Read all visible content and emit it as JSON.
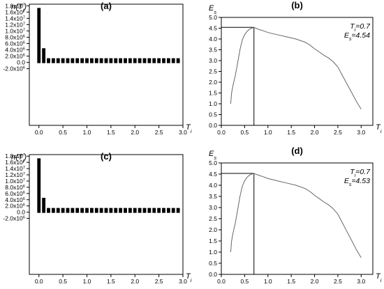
{
  "chart_data": [
    {
      "panel": "(a)",
      "type": "bar",
      "ylabel_main": "n(T",
      "ylabel_sub": "i",
      "ylabel_close": ")",
      "xlabel_main": "T",
      "xlabel_sub": "i",
      "xlim": [
        -0.2,
        3.0
      ],
      "ylim": [
        -20000000,
        18500000
      ],
      "x_ticks": [
        "0.0",
        "0.5",
        "1.0",
        "1.5",
        "2.0",
        "2.5",
        "3.0"
      ],
      "x_tick_values": [
        0.0,
        0.5,
        1.0,
        1.5,
        2.0,
        2.5,
        3.0
      ],
      "y_tick_values": [
        -2000000,
        0,
        2000000,
        4000000,
        6000000,
        8000000,
        10000000,
        12000000,
        14000000,
        16000000,
        18000000
      ],
      "y_ticks": [
        {
          "mant": "-2.0x10",
          "exp": "6"
        },
        {
          "mant": "0.0",
          "exp": ""
        },
        {
          "mant": "2.0x10",
          "exp": "6"
        },
        {
          "mant": "4.0x10",
          "exp": "6"
        },
        {
          "mant": "6.0x10",
          "exp": "6"
        },
        {
          "mant": "8.0x10",
          "exp": "6"
        },
        {
          "mant": "1.0x10",
          "exp": "7"
        },
        {
          "mant": "1.2x10",
          "exp": "7"
        },
        {
          "mant": "1.4x10",
          "exp": "7"
        },
        {
          "mant": "1.6x10",
          "exp": "7"
        },
        {
          "mant": "1.8x10",
          "exp": "7"
        }
      ],
      "bar_width": 0.07,
      "x": [
        0.0,
        0.1,
        0.2,
        0.3,
        0.4,
        0.5,
        0.6,
        0.7,
        0.8,
        0.9,
        1.0,
        1.1,
        1.2,
        1.3,
        1.4,
        1.5,
        1.6,
        1.7,
        1.8,
        1.9,
        2.0,
        2.1,
        2.2,
        2.3,
        2.4,
        2.5,
        2.6,
        2.7,
        2.8,
        2.9
      ],
      "values": [
        17300000,
        4500000,
        350000,
        150000,
        100000,
        80000,
        70000,
        60000,
        50000,
        50000,
        40000,
        40000,
        40000,
        30000,
        30000,
        30000,
        30000,
        30000,
        30000,
        30000,
        30000,
        30000,
        30000,
        30000,
        30000,
        30000,
        30000,
        30000,
        30000,
        30000
      ]
    },
    {
      "panel": "(b)",
      "type": "line",
      "ylabel_main": "E",
      "ylabel_sub": "s",
      "xlabel_main": "T",
      "xlabel_sub": "i",
      "xlim": [
        0.0,
        3.25
      ],
      "ylim": [
        0.0,
        5.0
      ],
      "x_ticks": [
        "0.0",
        "0.5",
        "1.0",
        "1.5",
        "2.0",
        "2.5",
        "3.0"
      ],
      "x_tick_values": [
        0.0,
        0.5,
        1.0,
        1.5,
        2.0,
        2.5,
        3.0
      ],
      "y_ticks": [
        "0.0",
        "0.5",
        "1.0",
        "1.5",
        "2.0",
        "2.5",
        "3.0",
        "3.5",
        "4.0",
        "4.5",
        "5.0"
      ],
      "y_tick_values": [
        0.0,
        0.5,
        1.0,
        1.5,
        2.0,
        2.5,
        3.0,
        3.5,
        4.0,
        4.5,
        5.0
      ],
      "annotation_ti_main": "T",
      "annotation_ti_sub": "i",
      "annotation_ti_value": "=0.7",
      "annotation_es_main": "E",
      "annotation_es_sub": "s",
      "annotation_es_value": "=4.54",
      "marker_x": 0.7,
      "marker_y": 4.54,
      "x": [
        0.2,
        0.22,
        0.25,
        0.3,
        0.35,
        0.4,
        0.45,
        0.5,
        0.55,
        0.6,
        0.65,
        0.7,
        0.8,
        0.9,
        1.0,
        1.2,
        1.4,
        1.6,
        1.8,
        1.9,
        2.0,
        2.1,
        2.2,
        2.3,
        2.4,
        2.5,
        2.6,
        2.7,
        2.8,
        2.9,
        3.0
      ],
      "y": [
        1.0,
        1.5,
        1.85,
        2.3,
        2.9,
        3.5,
        3.95,
        4.2,
        4.35,
        4.45,
        4.5,
        4.54,
        4.45,
        4.38,
        4.3,
        4.2,
        4.1,
        4.0,
        3.85,
        3.72,
        3.55,
        3.4,
        3.25,
        3.12,
        2.95,
        2.7,
        2.3,
        1.9,
        1.5,
        1.1,
        0.75
      ]
    },
    {
      "panel": "(c)",
      "type": "bar",
      "ylabel_main": "n(T",
      "ylabel_sub": "i",
      "ylabel_close": ")",
      "xlabel_main": "T",
      "xlabel_sub": "i",
      "xlim": [
        -0.2,
        3.0
      ],
      "ylim": [
        -20000000,
        18500000
      ],
      "x_ticks": [
        "0.0",
        "0.5",
        "1.0",
        "1.5",
        "2.0",
        "2.5",
        "3.0"
      ],
      "x_tick_values": [
        0.0,
        0.5,
        1.0,
        1.5,
        2.0,
        2.5,
        3.0
      ],
      "y_tick_values": [
        -2000000,
        0,
        2000000,
        4000000,
        6000000,
        8000000,
        10000000,
        12000000,
        14000000,
        16000000,
        18000000
      ],
      "y_ticks": [
        {
          "mant": "-2.0x10",
          "exp": "6"
        },
        {
          "mant": "0.0",
          "exp": ""
        },
        {
          "mant": "2.0x10",
          "exp": "6"
        },
        {
          "mant": "4.0x10",
          "exp": "6"
        },
        {
          "mant": "6.0x10",
          "exp": "6"
        },
        {
          "mant": "8.0x10",
          "exp": "6"
        },
        {
          "mant": "1.0x10",
          "exp": "7"
        },
        {
          "mant": "1.2x10",
          "exp": "7"
        },
        {
          "mant": "1.4x10",
          "exp": "7"
        },
        {
          "mant": "1.6x10",
          "exp": "7"
        },
        {
          "mant": "1.8x10",
          "exp": "7"
        }
      ],
      "bar_width": 0.07,
      "x": [
        0.0,
        0.1,
        0.2,
        0.3,
        0.4,
        0.5,
        0.6,
        0.7,
        0.8,
        0.9,
        1.0,
        1.1,
        1.2,
        1.3,
        1.4,
        1.5,
        1.6,
        1.7,
        1.8,
        1.9,
        2.0,
        2.1,
        2.2,
        2.3,
        2.4,
        2.5,
        2.6,
        2.7,
        2.8,
        2.9
      ],
      "values": [
        17300000,
        4600000,
        400000,
        150000,
        100000,
        80000,
        70000,
        60000,
        50000,
        50000,
        40000,
        40000,
        40000,
        30000,
        30000,
        30000,
        30000,
        30000,
        30000,
        30000,
        30000,
        30000,
        30000,
        30000,
        30000,
        30000,
        30000,
        30000,
        30000,
        30000
      ]
    },
    {
      "panel": "(d)",
      "type": "line",
      "ylabel_main": "E",
      "ylabel_sub": "s",
      "xlabel_main": "T",
      "xlabel_sub": "i",
      "xlim": [
        0.0,
        3.25
      ],
      "ylim": [
        0.0,
        5.0
      ],
      "x_ticks": [
        "0.0",
        "0.5",
        "1.0",
        "1.5",
        "2.0",
        "2.5",
        "3.0"
      ],
      "x_tick_values": [
        0.0,
        0.5,
        1.0,
        1.5,
        2.0,
        2.5,
        3.0
      ],
      "y_ticks": [
        "0.0",
        "0.5",
        "1.0",
        "1.5",
        "2.0",
        "2.5",
        "3.0",
        "3.5",
        "4.0",
        "4.5",
        "5.0"
      ],
      "y_tick_values": [
        0.0,
        0.5,
        1.0,
        1.5,
        2.0,
        2.5,
        3.0,
        3.5,
        4.0,
        4.5,
        5.0
      ],
      "annotation_ti_main": "T",
      "annotation_ti_sub": "i",
      "annotation_ti_value": "=0.7",
      "annotation_es_main": "E",
      "annotation_es_sub": "s",
      "annotation_es_value": "=4.53",
      "marker_x": 0.7,
      "marker_y": 4.53,
      "x": [
        0.2,
        0.22,
        0.25,
        0.3,
        0.35,
        0.4,
        0.45,
        0.5,
        0.55,
        0.6,
        0.65,
        0.7,
        0.8,
        0.9,
        1.0,
        1.2,
        1.4,
        1.6,
        1.8,
        1.9,
        2.0,
        2.1,
        2.2,
        2.3,
        2.4,
        2.5,
        2.6,
        2.7,
        2.8,
        2.9,
        3.0
      ],
      "y": [
        1.0,
        1.5,
        1.85,
        2.3,
        2.9,
        3.5,
        3.95,
        4.2,
        4.35,
        4.45,
        4.5,
        4.53,
        4.45,
        4.38,
        4.3,
        4.2,
        4.1,
        4.0,
        3.85,
        3.72,
        3.55,
        3.4,
        3.25,
        3.12,
        2.95,
        2.7,
        2.3,
        1.9,
        1.5,
        1.1,
        0.75
      ]
    }
  ]
}
